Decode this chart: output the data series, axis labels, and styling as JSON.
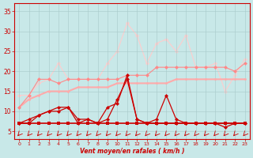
{
  "x": [
    0,
    1,
    2,
    3,
    4,
    5,
    6,
    7,
    8,
    9,
    10,
    11,
    12,
    13,
    14,
    15,
    16,
    17,
    18,
    19,
    20,
    21,
    22,
    23
  ],
  "line_flat": [
    7,
    7,
    7,
    7,
    7,
    7,
    7,
    7,
    7,
    7,
    7,
    7,
    7,
    7,
    7,
    7,
    7,
    7,
    7,
    7,
    7,
    7,
    7,
    7
  ],
  "line_dark_jagged": [
    7,
    7,
    9,
    10,
    11,
    11,
    7,
    8,
    7,
    11,
    12,
    19,
    8,
    7,
    8,
    14,
    8,
    7,
    7,
    7,
    7,
    6,
    7,
    7
  ],
  "line_dark_triangle": [
    7,
    8,
    9,
    10,
    10,
    11,
    8,
    8,
    7,
    8,
    13,
    18,
    8,
    7,
    7,
    7,
    7,
    7,
    7,
    7,
    7,
    7,
    7,
    7
  ],
  "line_med_pink": [
    11,
    14,
    18,
    18,
    17,
    18,
    18,
    18,
    18,
    18,
    18,
    19,
    19,
    19,
    21,
    21,
    21,
    21,
    21,
    21,
    21,
    21,
    20,
    22
  ],
  "line_light_slope": [
    11,
    13,
    14,
    15,
    15,
    15,
    16,
    16,
    16,
    16,
    17,
    17,
    17,
    17,
    17,
    17,
    18,
    18,
    18,
    18,
    18,
    18,
    18,
    18
  ],
  "line_lightest_peak": [
    14,
    14,
    17,
    18,
    22,
    18,
    18,
    18,
    18,
    22,
    25,
    32,
    29,
    22,
    27,
    28,
    25,
    29,
    21,
    21,
    22,
    15,
    19,
    23
  ],
  "colors": {
    "flat": "#cc0000",
    "dark_jagged": "#cc0000",
    "dark_triangle": "#cc0000",
    "med_pink": "#ff8888",
    "light_slope": "#ffaaaa",
    "lightest_peak": "#ffcccc"
  },
  "bg_color": "#c8e8e8",
  "grid_color": "#aacccc",
  "axis_color": "#cc0000",
  "xlabel": "Vent moyen/en rafales ( km/h )",
  "ylim": [
    3,
    37
  ],
  "yticks": [
    5,
    10,
    15,
    20,
    25,
    30,
    35
  ]
}
